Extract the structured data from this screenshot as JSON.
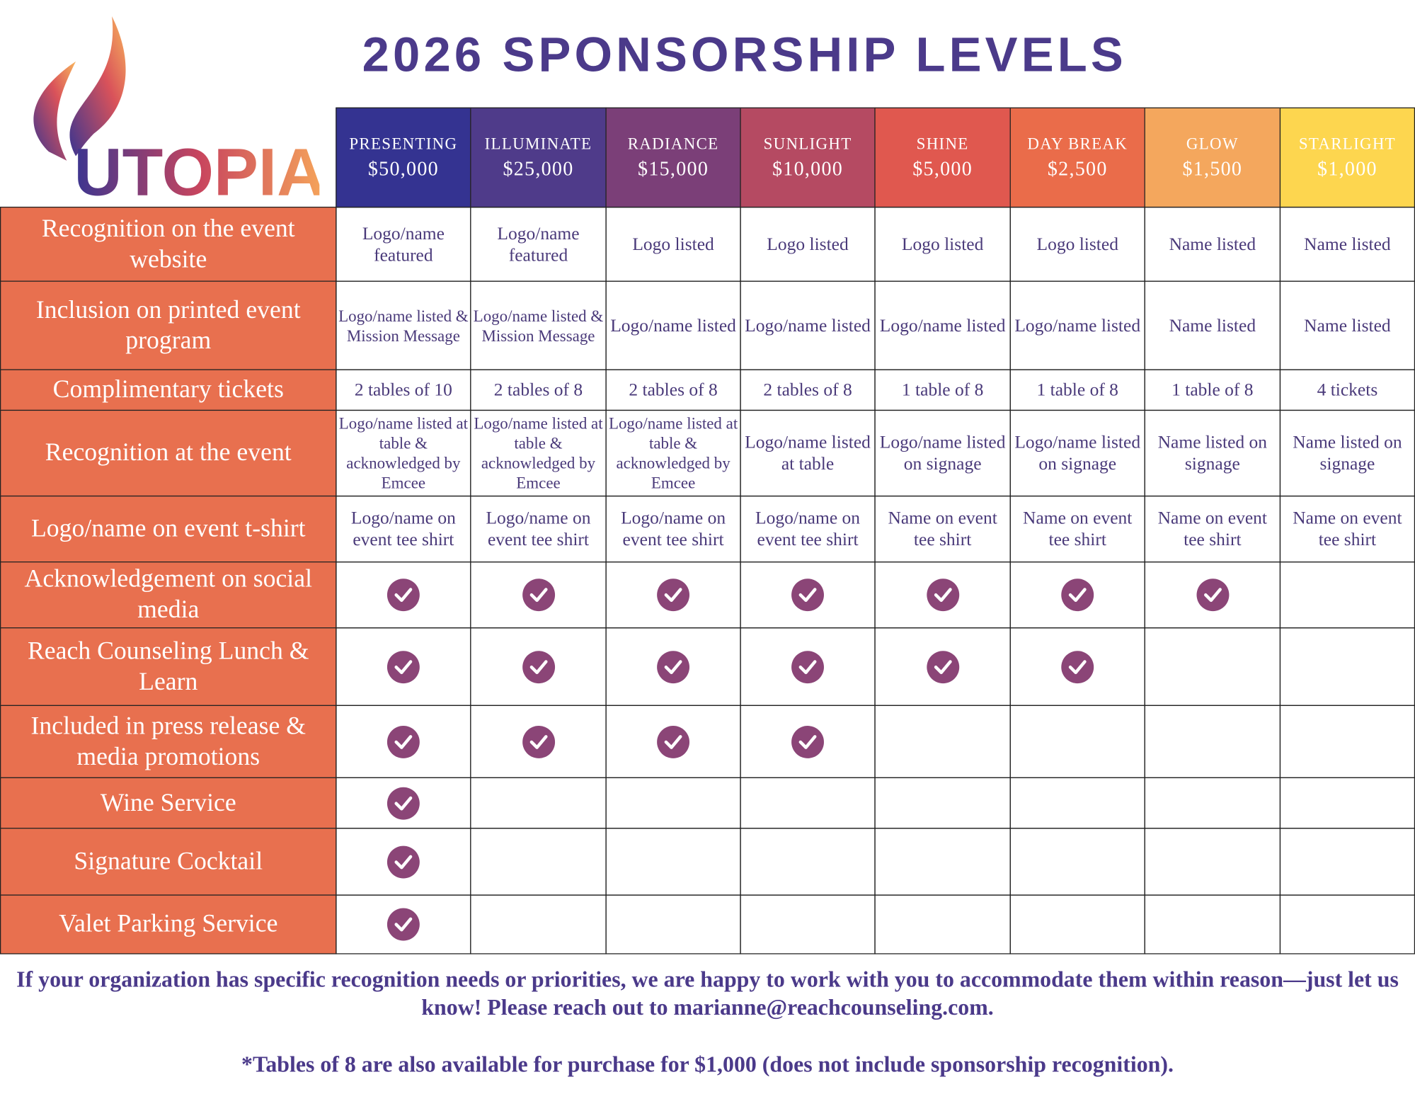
{
  "logo": {
    "text": "UTOPIA"
  },
  "title": "2026 SPONSORSHIP LEVELS",
  "table": {
    "levels": [
      {
        "name": "PRESENTING",
        "price": "$50,000",
        "color": "#343391"
      },
      {
        "name": "ILLUMINATE",
        "price": "$25,000",
        "color": "#4f3b8a"
      },
      {
        "name": "RADIANCE",
        "price": "$15,000",
        "color": "#7b3f78"
      },
      {
        "name": "SUNLIGHT",
        "price": "$10,000",
        "color": "#b54a62"
      },
      {
        "name": "SHINE",
        "price": "$5,000",
        "color": "#e0584f"
      },
      {
        "name": "DAY BREAK",
        "price": "$2,500",
        "color": "#ea6c4a"
      },
      {
        "name": "GLOW",
        "price": "$1,500",
        "color": "#f4a75d"
      },
      {
        "name": "STARLIGHT",
        "price": "$1,000",
        "color": "#fdd64f"
      }
    ],
    "rows": [
      {
        "label": "Recognition on the event website",
        "cells": [
          "Logo/name featured",
          "Logo/name featured",
          "Logo listed",
          "Logo listed",
          "Logo listed",
          "Logo listed",
          "Name listed",
          "Name listed"
        ]
      },
      {
        "label": "Inclusion on printed event program",
        "cells": [
          "Logo/name listed & Mission Message",
          "Logo/name listed & Mission Message",
          "Logo/name listed",
          "Logo/name listed",
          "Logo/name listed",
          "Logo/name listed",
          "Name listed",
          "Name listed"
        ]
      },
      {
        "label": "Complimentary tickets",
        "cells": [
          "2 tables of 10",
          "2 tables of 8",
          "2 tables of 8",
          "2 tables of 8",
          "1 table of 8",
          "1 table of 8",
          "1 table of 8",
          "4 tickets"
        ]
      },
      {
        "label": "Recognition at the event",
        "cells": [
          "Logo/name listed at table & acknowledged by Emcee",
          "Logo/name listed at table & acknowledged by Emcee",
          "Logo/name listed at table & acknowledged by Emcee",
          "Logo/name listed at table",
          "Logo/name listed on signage",
          "Logo/name listed on signage",
          "Name listed on signage",
          "Name listed on signage"
        ]
      },
      {
        "label": "Logo/name on event t-shirt",
        "cells": [
          "Logo/name on event tee shirt",
          "Logo/name on event tee shirt",
          "Logo/name on event tee shirt",
          "Logo/name on event tee shirt",
          "Name on event tee shirt",
          "Name on event tee shirt",
          "Name on event tee shirt",
          "Name on event tee shirt"
        ]
      },
      {
        "label": "Acknowledgement on social media",
        "cells": [
          true,
          true,
          true,
          true,
          true,
          true,
          true,
          false
        ]
      },
      {
        "label": "Reach Counseling Lunch & Learn",
        "cells": [
          true,
          true,
          true,
          true,
          true,
          true,
          false,
          false
        ]
      },
      {
        "label": "Included in press release & media promotions",
        "cells": [
          true,
          true,
          true,
          true,
          false,
          false,
          false,
          false
        ]
      },
      {
        "label": "Wine Service",
        "cells": [
          true,
          false,
          false,
          false,
          false,
          false,
          false,
          false
        ]
      },
      {
        "label": "Signature Cocktail",
        "cells": [
          true,
          false,
          false,
          false,
          false,
          false,
          false,
          false
        ]
      },
      {
        "label": "Valet Parking Service",
        "cells": [
          true,
          false,
          false,
          false,
          false,
          false,
          false,
          false
        ]
      }
    ]
  },
  "footer": {
    "note": "If your organization has specific recognition needs or priorities, we are happy to work with you to accommodate them within reason—just let us know! Please reach out to marianne@reachcounseling.com.",
    "tables_note": "*Tables of 8 are also available for purchase for $1,000 (does not include sponsorship recognition)."
  }
}
